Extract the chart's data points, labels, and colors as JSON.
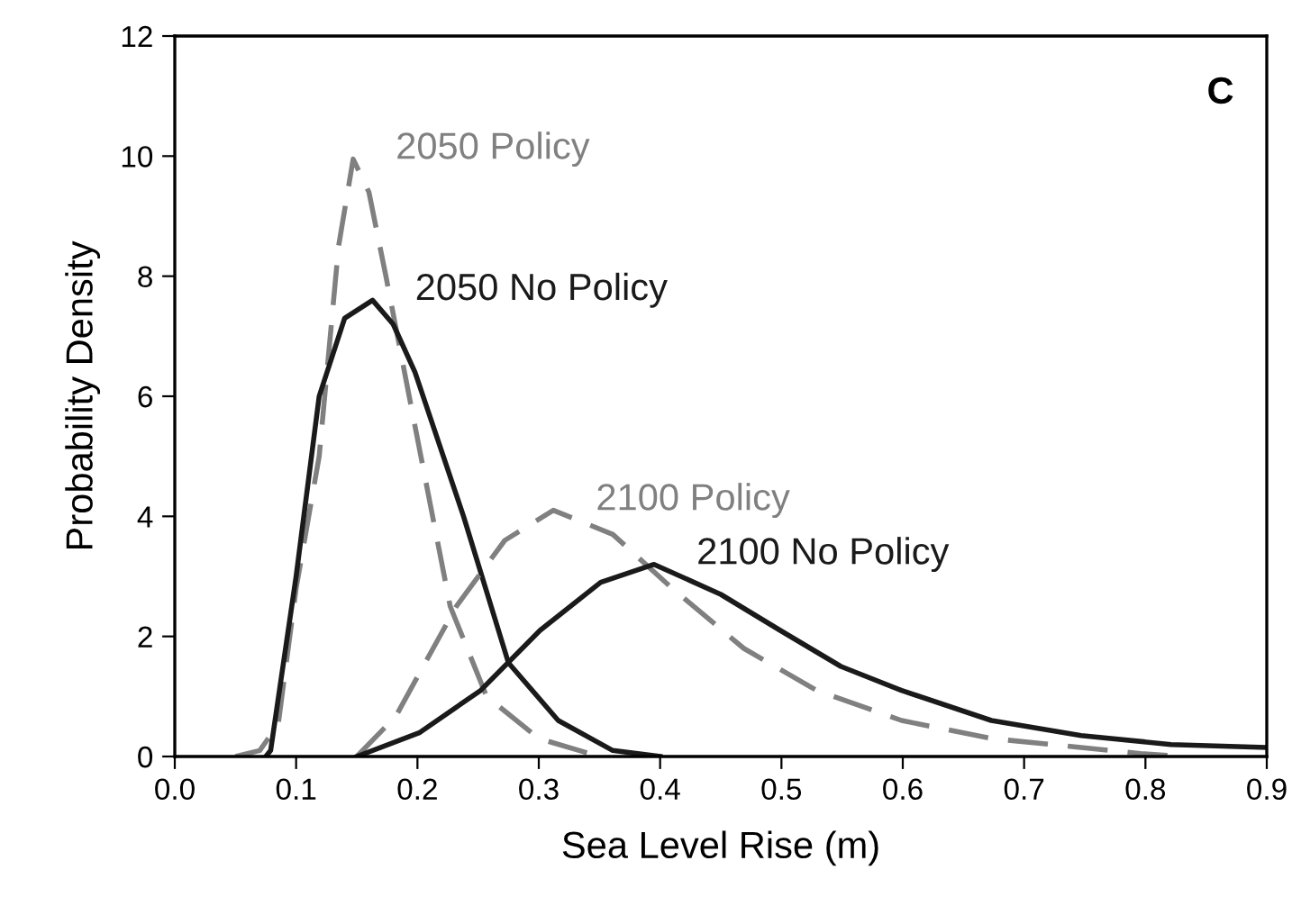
{
  "chart_data": {
    "type": "line",
    "xlabel": "Sea Level Rise (m)",
    "ylabel": "Probability Density",
    "xlim": [
      0,
      0.9
    ],
    "ylim": [
      0,
      12
    ],
    "xticks": [
      {
        "value": 0,
        "label": "0.0"
      },
      {
        "value": 0.1,
        "label": "0.1"
      },
      {
        "value": 0.2,
        "label": "0.2"
      },
      {
        "value": 0.3,
        "label": "0.3"
      },
      {
        "value": 0.4,
        "label": "0.4"
      },
      {
        "value": 0.5,
        "label": "0.5"
      },
      {
        "value": 0.6,
        "label": "0.6"
      },
      {
        "value": 0.7,
        "label": "0.7"
      },
      {
        "value": 0.8,
        "label": "0.8"
      },
      {
        "value": 0.9,
        "label": "0.9"
      }
    ],
    "yticks": [
      0,
      2,
      4,
      6,
      8,
      10,
      12
    ],
    "grid": false,
    "legend": false,
    "marker": "none",
    "series": [
      {
        "name": "2050 Policy",
        "color": "#808080",
        "line_style": "dashed",
        "x": [
          0.05,
          0.07,
          0.077,
          0.085,
          0.1,
          0.119,
          0.135,
          0.147,
          0.16,
          0.174,
          0.198,
          0.227,
          0.257,
          0.3,
          0.35
        ],
        "values": [
          0,
          0.1,
          0.3,
          0.5,
          2.8,
          5.0,
          8.5,
          9.95,
          9.4,
          8.0,
          5.5,
          2.5,
          1.0,
          0.3,
          0
        ]
      },
      {
        "name": "2050 No Policy",
        "color": "#1a1a1a",
        "line_style": "solid",
        "x": [
          0.075,
          0.079,
          0.1,
          0.119,
          0.14,
          0.163,
          0.18,
          0.198,
          0.238,
          0.275,
          0.316,
          0.361,
          0.4
        ],
        "values": [
          0,
          0.1,
          3.0,
          6.0,
          7.3,
          7.6,
          7.2,
          6.4,
          4.0,
          1.56,
          0.6,
          0.1,
          0
        ]
      },
      {
        "name": "2100 Policy",
        "color": "#808080",
        "line_style": "dashed",
        "x": [
          0.15,
          0.174,
          0.183,
          0.202,
          0.232,
          0.272,
          0.312,
          0.361,
          0.41,
          0.469,
          0.529,
          0.599,
          0.673,
          0.796,
          0.83
        ],
        "values": [
          0,
          0.5,
          0.7,
          1.4,
          2.5,
          3.6,
          4.1,
          3.7,
          2.8,
          1.8,
          1.1,
          0.6,
          0.3,
          0.05,
          0
        ]
      },
      {
        "name": "2100 No Policy",
        "color": "#1a1a1a",
        "line_style": "solid",
        "x": [
          0.15,
          0.202,
          0.252,
          0.301,
          0.351,
          0.395,
          0.45,
          0.499,
          0.549,
          0.599,
          0.673,
          0.747,
          0.821,
          0.9
        ],
        "values": [
          0,
          0.4,
          1.1,
          2.1,
          2.9,
          3.2,
          2.7,
          2.1,
          1.5,
          1.1,
          0.6,
          0.35,
          0.2,
          0.15
        ]
      }
    ],
    "annotations": [
      "C"
    ]
  }
}
